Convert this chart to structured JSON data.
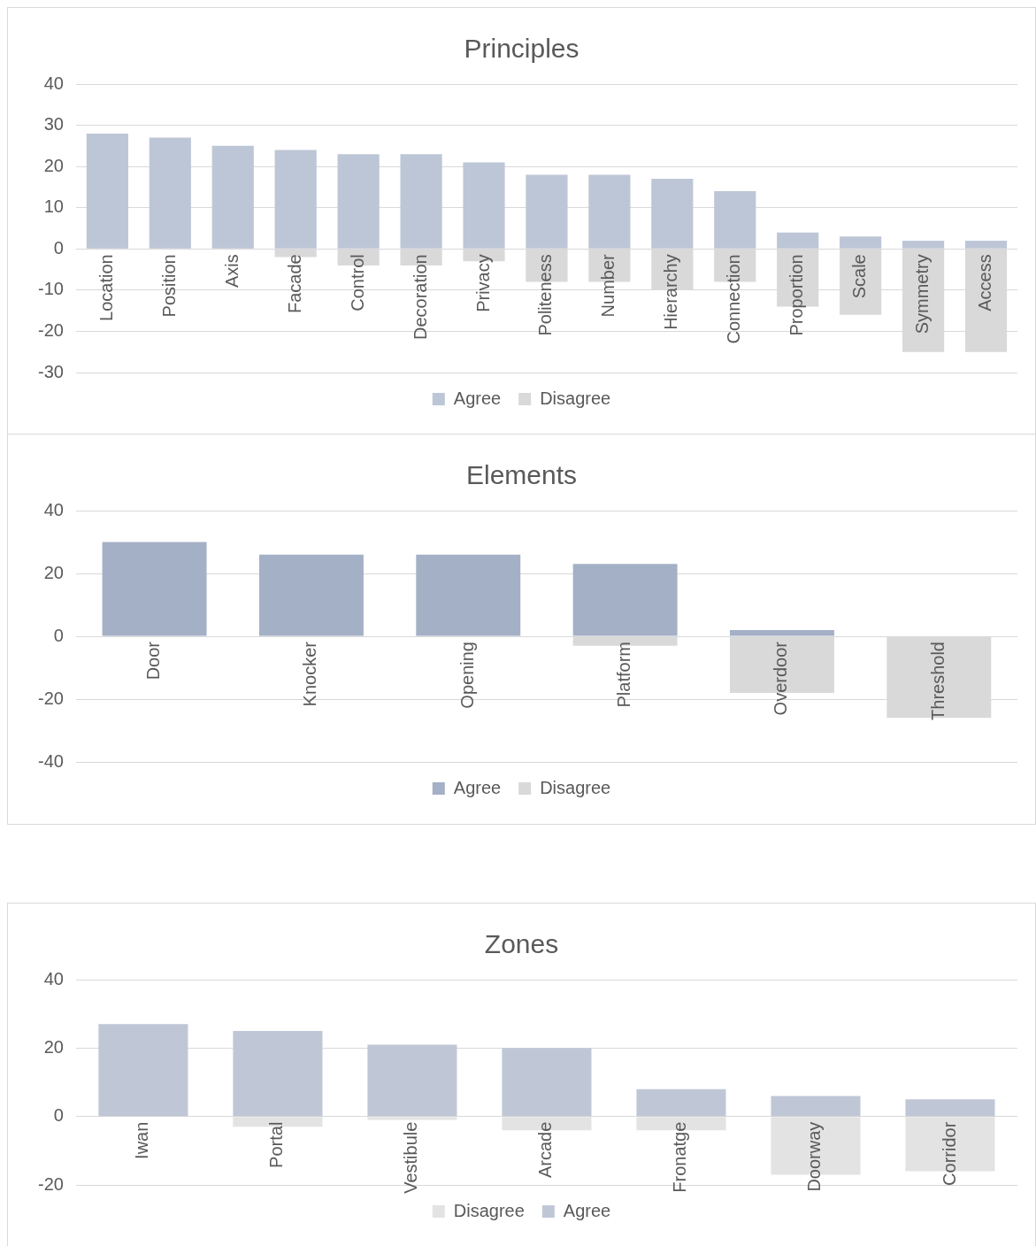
{
  "chart_data": [
    {
      "type": "bar",
      "title": "Principles",
      "categories": [
        "Location",
        "Position",
        "Axis",
        "Facade",
        "Control",
        "Decoration",
        "Privacy",
        "Politeness",
        "Number",
        "Hierarchy",
        "Connection",
        "Proportion",
        "Scale",
        "Symmetry",
        "Access"
      ],
      "stacked": true,
      "series": [
        {
          "name": "Agree",
          "color": "#bdc6d6",
          "values": [
            28,
            27,
            25,
            24,
            23,
            23,
            21,
            18,
            18,
            17,
            14,
            4,
            3,
            2,
            2
          ]
        },
        {
          "name": "Disagree",
          "color": "#d9d9d9",
          "values": [
            0,
            0,
            0,
            -2,
            -4,
            -4,
            -3,
            -8,
            -8,
            -10,
            -8,
            -14,
            -16,
            -25,
            -25
          ]
        }
      ],
      "ylim": [
        -30,
        40
      ],
      "yticks": [
        -30,
        -20,
        -10,
        0,
        10,
        20,
        30,
        40
      ],
      "grid": "y",
      "legend": "bottom"
    },
    {
      "type": "bar",
      "title": "Elements",
      "categories": [
        "Door",
        "Knocker",
        "Opening",
        "Platform",
        "Overdoor",
        "Threshold"
      ],
      "stacked": true,
      "series": [
        {
          "name": "Agree",
          "color": "#a4b0c5",
          "values": [
            30,
            26,
            26,
            23,
            2,
            0
          ]
        },
        {
          "name": "Disagree",
          "color": "#d9d9d9",
          "values": [
            0,
            0,
            0,
            -3,
            -18,
            -26
          ]
        }
      ],
      "ylim": [
        -40,
        40
      ],
      "yticks": [
        -40,
        -20,
        0,
        20,
        40
      ],
      "grid": "y",
      "legend": "bottom"
    },
    {
      "type": "bar",
      "title": "Zones",
      "categories": [
        "Iwan",
        "Portal",
        "Vestibule",
        "Arcade",
        "Fronatge",
        "Doorway",
        "Corridor"
      ],
      "stacked": true,
      "series": [
        {
          "name": "Disagree",
          "color": "#e3e3e3",
          "values": [
            0,
            -3,
            -1,
            -4,
            -4,
            -17,
            -16
          ]
        },
        {
          "name": "Agree",
          "color": "#bfc7d7",
          "values": [
            27,
            25,
            21,
            20,
            8,
            6,
            5
          ]
        }
      ],
      "ylim": [
        -20,
        40
      ],
      "yticks": [
        -20,
        0,
        20,
        40
      ],
      "grid": "y",
      "legend": "bottom"
    }
  ]
}
